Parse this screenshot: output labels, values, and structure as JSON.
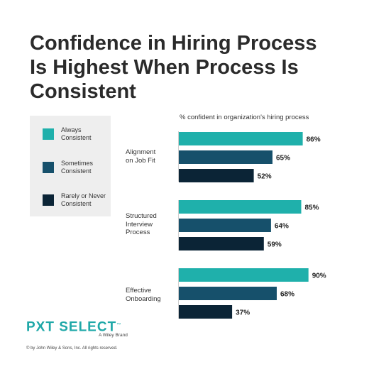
{
  "title_lines": [
    "Confidence in Hiring Process",
    "Is Highest When Process Is",
    "Consistent"
  ],
  "colors": {
    "always": "#1fb0ab",
    "sometimes": "#16506b",
    "rarely": "#0b2436"
  },
  "legend": [
    {
      "label_lines": [
        "Always",
        "Consistent"
      ],
      "color_key": "always"
    },
    {
      "label_lines": [
        "Sometimes",
        "Consistent"
      ],
      "color_key": "sometimes"
    },
    {
      "label_lines": [
        "Rarely or Never",
        "Consistent"
      ],
      "color_key": "rarely"
    }
  ],
  "logo": {
    "text": "PXT SELECT",
    "trademark": "™",
    "sub": "A Wiley Brand"
  },
  "copyright": "© by John Wiley & Sons, Inc. All rights reserved.",
  "chart_data": {
    "type": "bar",
    "orientation": "horizontal",
    "subtitle": "% confident in organization's hiring process",
    "categories": [
      {
        "label_lines": [
          "Alignment",
          "on Job Fit"
        ]
      },
      {
        "label_lines": [
          "Structured",
          "Interview",
          "Process"
        ]
      },
      {
        "label_lines": [
          "Effective",
          "Onboarding"
        ]
      }
    ],
    "series": [
      {
        "name": "Always Consistent",
        "color_key": "always",
        "values": [
          86,
          85,
          90
        ]
      },
      {
        "name": "Sometimes Consistent",
        "color_key": "sometimes",
        "values": [
          65,
          64,
          68
        ]
      },
      {
        "name": "Rarely or Never Consistent",
        "color_key": "rarely",
        "values": [
          52,
          59,
          37
        ]
      }
    ],
    "value_suffix": "%",
    "xlim": [
      0,
      100
    ],
    "grid": false,
    "legend_position": "left"
  }
}
